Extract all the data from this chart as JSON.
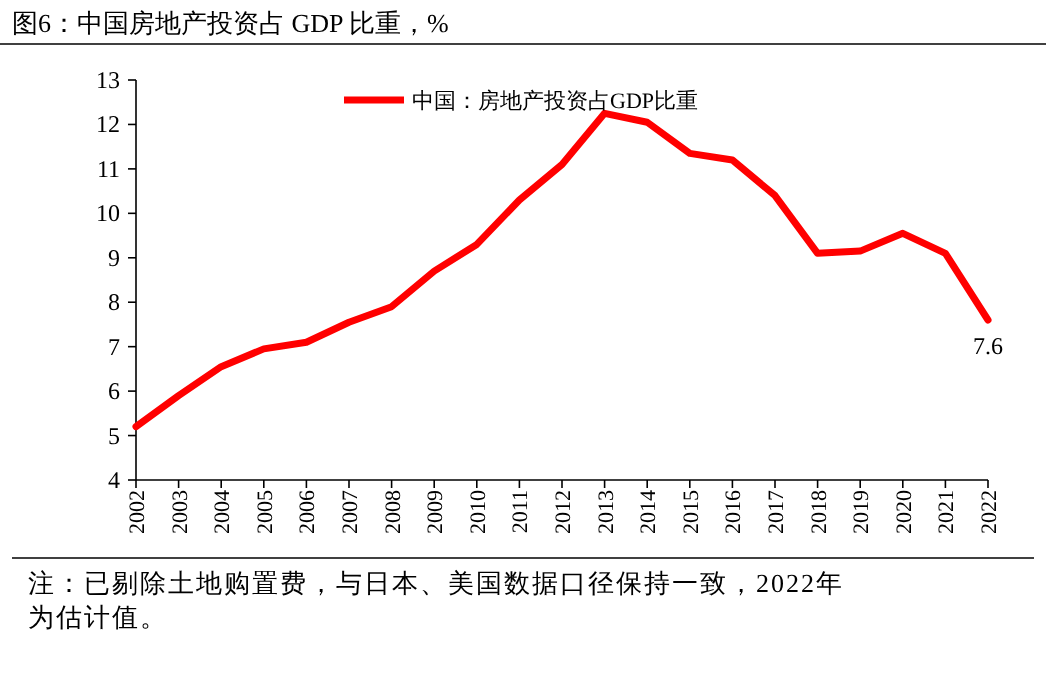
{
  "chart_data": {
    "type": "line",
    "title": "图6：中国房地产投资占 GDP 比重，%",
    "categories": [
      "2002",
      "2003",
      "2004",
      "2005",
      "2006",
      "2007",
      "2008",
      "2009",
      "2010",
      "2011",
      "2012",
      "2013",
      "2014",
      "2015",
      "2016",
      "2017",
      "2018",
      "2019",
      "2020",
      "2021",
      "2022"
    ],
    "series": [
      {
        "name": "中国：房地产投资占GDP比重",
        "color": "#ff0000",
        "values": [
          5.2,
          5.9,
          6.55,
          6.95,
          7.1,
          7.55,
          7.9,
          8.7,
          9.3,
          10.3,
          11.1,
          12.25,
          12.05,
          11.35,
          11.2,
          10.4,
          9.1,
          9.15,
          9.55,
          9.1,
          7.6
        ],
        "value_labels": [
          null,
          null,
          null,
          null,
          null,
          null,
          null,
          null,
          null,
          null,
          null,
          null,
          null,
          null,
          null,
          null,
          null,
          null,
          null,
          null,
          "7.6"
        ]
      }
    ],
    "ylim": [
      4,
      13
    ],
    "yticks": [
      4,
      5,
      6,
      7,
      8,
      9,
      10,
      11,
      12,
      13
    ],
    "grid": false,
    "legend": "top",
    "marker": "none",
    "line_style": "solid",
    "annotations": [
      "注：已剔除土地购置费，与日本、美国数据口径保持一致，2022年为估计值。"
    ]
  }
}
